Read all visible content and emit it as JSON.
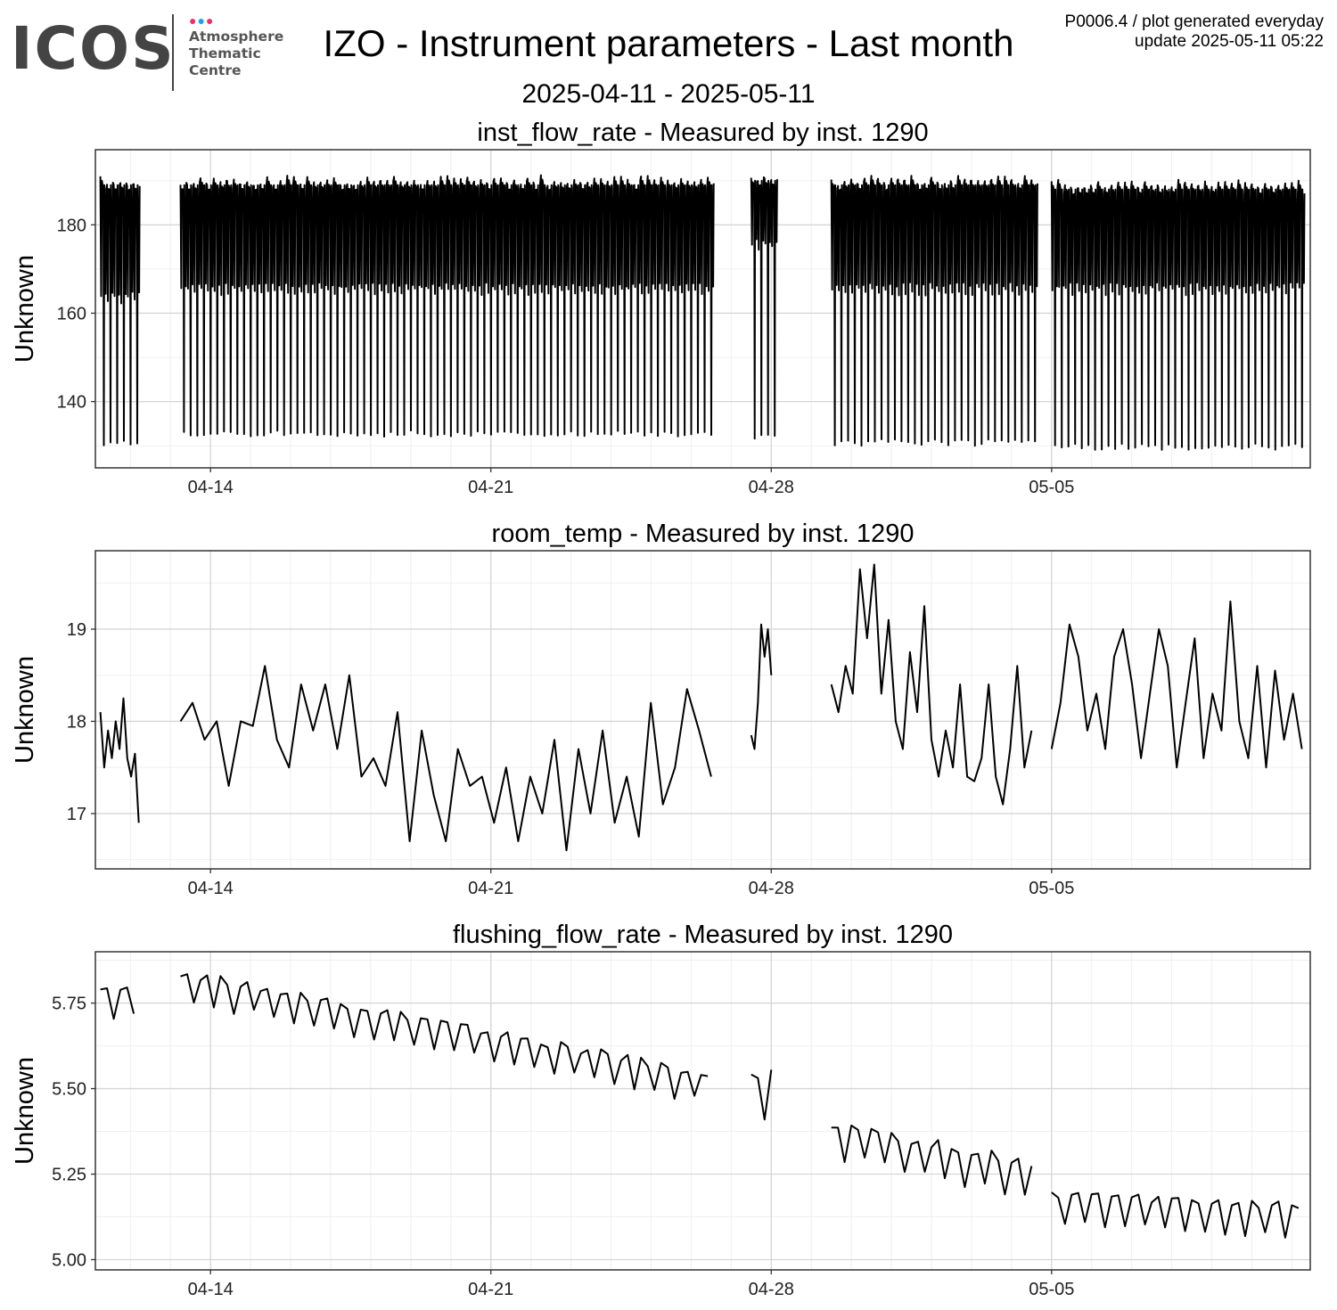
{
  "logo": {
    "name": "ICOS",
    "dots": "●●●",
    "line1": "Atmosphere",
    "line2": "Thematic",
    "line3": "Centre"
  },
  "title": "IZO - Instrument parameters - Last month",
  "subtitle": "2025-04-11 - 2025-05-11",
  "meta": {
    "line1": "P0006.4 / plot generated everyday",
    "line2": "update  2025-05-11 05:22"
  },
  "colors": {
    "line": "#000000",
    "grid_major": "#d6d6d6",
    "grid_minor": "#efefef",
    "frame": "#333333"
  },
  "chart_data": [
    {
      "type": "line",
      "title": "inst_flow_rate - Measured by inst. 1290",
      "xlabel": "",
      "ylabel": "Unknown",
      "x_ticks": [
        "04-14",
        "04-21",
        "04-28",
        "05-05"
      ],
      "y_ticks": [
        140,
        160,
        180
      ],
      "xlim": [
        "2025-04-11 03:00",
        "2025-05-11 11:00"
      ],
      "ylim": [
        125,
        197
      ],
      "grid": true,
      "data_note": "rapid oscillation each cycle between upper envelope and lower envelope",
      "segments": [
        {
          "start": "2025-04-11 06:00",
          "end": "2025-04-12 05:00",
          "high": 190,
          "mid": 163,
          "low": 130
        },
        {
          "start": "2025-04-13 06:00",
          "end": "2025-04-26 12:00",
          "high": 190,
          "mid": 165,
          "low": 132
        },
        {
          "start": "2025-04-27 12:00",
          "end": "2025-04-28 00:00",
          "high": 191,
          "mid": 175,
          "low": 131
        },
        {
          "start": "2025-04-29 12:00",
          "end": "2025-05-04 12:00",
          "high": 190,
          "mid": 165,
          "low": 130
        },
        {
          "start": "2025-05-05 00:00",
          "end": "2025-05-11 06:00",
          "high": 189,
          "mid": 165,
          "low": 129
        }
      ]
    },
    {
      "type": "line",
      "title": "room_temp - Measured by inst. 1290",
      "xlabel": "",
      "ylabel": "Unknown",
      "x_ticks": [
        "04-14",
        "04-21",
        "04-28",
        "05-05"
      ],
      "y_ticks": [
        17,
        18,
        19
      ],
      "xlim": [
        "2025-04-11 03:00",
        "2025-05-11 11:00"
      ],
      "ylim": [
        16.4,
        19.85
      ],
      "grid": true,
      "segments": [
        {
          "start": "2025-04-11 06:00",
          "end": "2025-04-12 05:00",
          "y": [
            18.1,
            17.5,
            17.9,
            17.6,
            18.0,
            17.7,
            18.25,
            17.6,
            17.4,
            17.65,
            16.9
          ]
        },
        {
          "start": "2025-04-13 06:00",
          "end": "2025-04-26 12:00",
          "y": [
            18.0,
            18.2,
            17.8,
            18.0,
            17.3,
            18.0,
            17.95,
            18.6,
            17.8,
            17.5,
            18.4,
            17.9,
            18.4,
            17.7,
            18.5,
            17.4,
            17.6,
            17.3,
            18.1,
            16.7,
            17.9,
            17.2,
            16.7,
            17.7,
            17.3,
            17.4,
            16.9,
            17.5,
            16.7,
            17.4,
            17.0,
            17.8,
            16.6,
            17.7,
            17.0,
            17.9,
            16.9,
            17.4,
            16.75,
            18.2,
            17.1,
            17.5,
            18.35,
            17.9,
            17.4
          ]
        },
        {
          "start": "2025-04-27 12:00",
          "end": "2025-04-28 00:00",
          "y": [
            17.85,
            17.7,
            18.2,
            19.05,
            18.7,
            19.0,
            18.5
          ]
        },
        {
          "start": "2025-04-29 12:00",
          "end": "2025-05-04 12:00",
          "y": [
            18.4,
            18.1,
            18.6,
            18.3,
            19.65,
            18.9,
            19.7,
            18.3,
            19.1,
            18.0,
            17.7,
            18.75,
            18.1,
            19.25,
            17.8,
            17.4,
            17.9,
            17.5,
            18.4,
            17.4,
            17.35,
            17.6,
            18.4,
            17.4,
            17.1,
            17.7,
            18.6,
            17.5,
            17.9
          ]
        },
        {
          "start": "2025-05-05 00:00",
          "end": "2025-05-11 06:00",
          "y": [
            17.7,
            18.2,
            19.05,
            18.7,
            17.9,
            18.3,
            17.7,
            18.7,
            19.0,
            18.4,
            17.6,
            18.3,
            19.0,
            18.6,
            17.5,
            18.2,
            18.9,
            17.6,
            18.3,
            17.9,
            19.3,
            18.0,
            17.6,
            18.6,
            17.5,
            18.55,
            17.8,
            18.3,
            17.7
          ]
        }
      ]
    },
    {
      "type": "line",
      "title": "flushing_flow_rate - Measured by inst. 1290",
      "xlabel": "",
      "ylabel": "Unknown",
      "x_ticks": [
        "04-14",
        "04-21",
        "04-28",
        "05-05"
      ],
      "y_ticks": [
        5.0,
        5.25,
        5.5,
        5.75
      ],
      "y_tick_labels": [
        "5.00",
        "5.25",
        "5.50",
        "5.75"
      ],
      "xlim": [
        "2025-04-11 03:00",
        "2025-05-11 11:00"
      ],
      "ylim": [
        4.97,
        5.9
      ],
      "grid": true,
      "data_note": "daily sawtooth oscillation around a slowly declining baseline",
      "segments": [
        {
          "start": "2025-04-11 06:00",
          "end": "2025-04-12 05:00",
          "base_start": 5.74,
          "base_end": 5.75,
          "amp": 0.05
        },
        {
          "start": "2025-04-13 06:00",
          "end": "2025-04-26 12:00",
          "base_start": 5.79,
          "base_end": 5.49,
          "amp": 0.05
        },
        {
          "start": "2025-04-27 12:00",
          "end": "2025-04-28 00:00",
          "base_start": 5.45,
          "base_end": 5.45,
          "amp": 0.09
        },
        {
          "start": "2025-04-29 12:00",
          "end": "2025-05-04 12:00",
          "base_start": 5.34,
          "base_end": 5.22,
          "amp": 0.06
        },
        {
          "start": "2025-05-05 00:00",
          "end": "2025-05-11 06:00",
          "base_start": 5.14,
          "base_end": 5.1,
          "amp": 0.055
        }
      ]
    }
  ]
}
